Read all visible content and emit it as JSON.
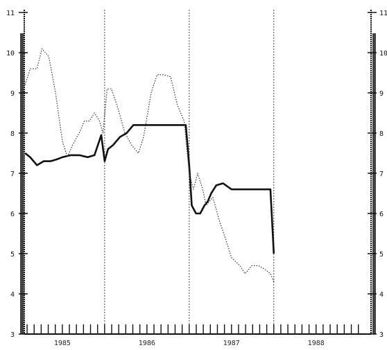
{
  "chart_data": {
    "type": "line",
    "title": "",
    "xlabel": "",
    "ylabel": "",
    "x_ticks": [
      "1985",
      "1986",
      "1987",
      "1988"
    ],
    "xlim": [
      1984.55,
      1988.65
    ],
    "ylim": [
      3,
      11
    ],
    "y_ticks": [
      3,
      4,
      5,
      6,
      7,
      8,
      9,
      10,
      11
    ],
    "vertical_lines": [
      1985.5,
      1986.5,
      1987.5
    ],
    "grid": false,
    "series": [
      {
        "style": "solid",
        "color": "#111111",
        "x": [
          1984.56,
          1984.62,
          1984.7,
          1984.78,
          1984.86,
          1984.94,
          1985.0,
          1985.1,
          1985.2,
          1985.3,
          1985.38,
          1985.46,
          1985.5,
          1985.54,
          1985.6,
          1985.68,
          1985.76,
          1985.84,
          1985.92,
          1986.0,
          1986.1,
          1986.2,
          1986.3,
          1986.4,
          1986.46,
          1986.5,
          1986.53,
          1986.58,
          1986.63,
          1986.68,
          1986.72,
          1986.76,
          1986.82,
          1986.9,
          1987.0,
          1987.1,
          1987.2,
          1987.3,
          1987.4,
          1987.46,
          1987.5
        ],
        "y": [
          7.5,
          7.4,
          7.2,
          7.3,
          7.3,
          7.35,
          7.4,
          7.45,
          7.45,
          7.4,
          7.45,
          7.95,
          7.3,
          7.6,
          7.7,
          7.9,
          8.0,
          8.2,
          8.2,
          8.2,
          8.2,
          8.2,
          8.2,
          8.2,
          8.2,
          7.2,
          6.2,
          6.0,
          6.0,
          6.2,
          6.3,
          6.5,
          6.7,
          6.75,
          6.6,
          6.6,
          6.6,
          6.6,
          6.6,
          6.6,
          5.0
        ]
      },
      {
        "style": "dotted",
        "color": "#333333",
        "x": [
          1984.56,
          1984.62,
          1984.7,
          1984.76,
          1984.84,
          1984.92,
          1985.0,
          1985.06,
          1985.12,
          1985.2,
          1985.26,
          1985.32,
          1985.38,
          1985.44,
          1985.48,
          1985.53,
          1985.58,
          1985.66,
          1985.74,
          1985.82,
          1985.9,
          1985.96,
          1986.05,
          1986.12,
          1986.2,
          1986.28,
          1986.36,
          1986.44,
          1986.5,
          1986.55,
          1986.6,
          1986.66,
          1986.7,
          1986.78,
          1986.86,
          1986.94,
          1987.0,
          1987.1,
          1987.16,
          1987.24,
          1987.32,
          1987.4,
          1987.46,
          1987.5
        ],
        "y": [
          9.2,
          9.6,
          9.6,
          10.1,
          9.9,
          9.0,
          7.8,
          7.4,
          7.7,
          8.0,
          8.3,
          8.3,
          8.5,
          8.3,
          8.0,
          9.1,
          9.1,
          8.6,
          8.0,
          7.7,
          7.5,
          7.9,
          9.0,
          9.45,
          9.45,
          9.4,
          8.7,
          8.3,
          7.0,
          6.6,
          7.0,
          6.6,
          6.2,
          6.4,
          5.8,
          5.3,
          4.9,
          4.7,
          4.5,
          4.7,
          4.7,
          4.6,
          4.5,
          4.3
        ]
      }
    ]
  }
}
